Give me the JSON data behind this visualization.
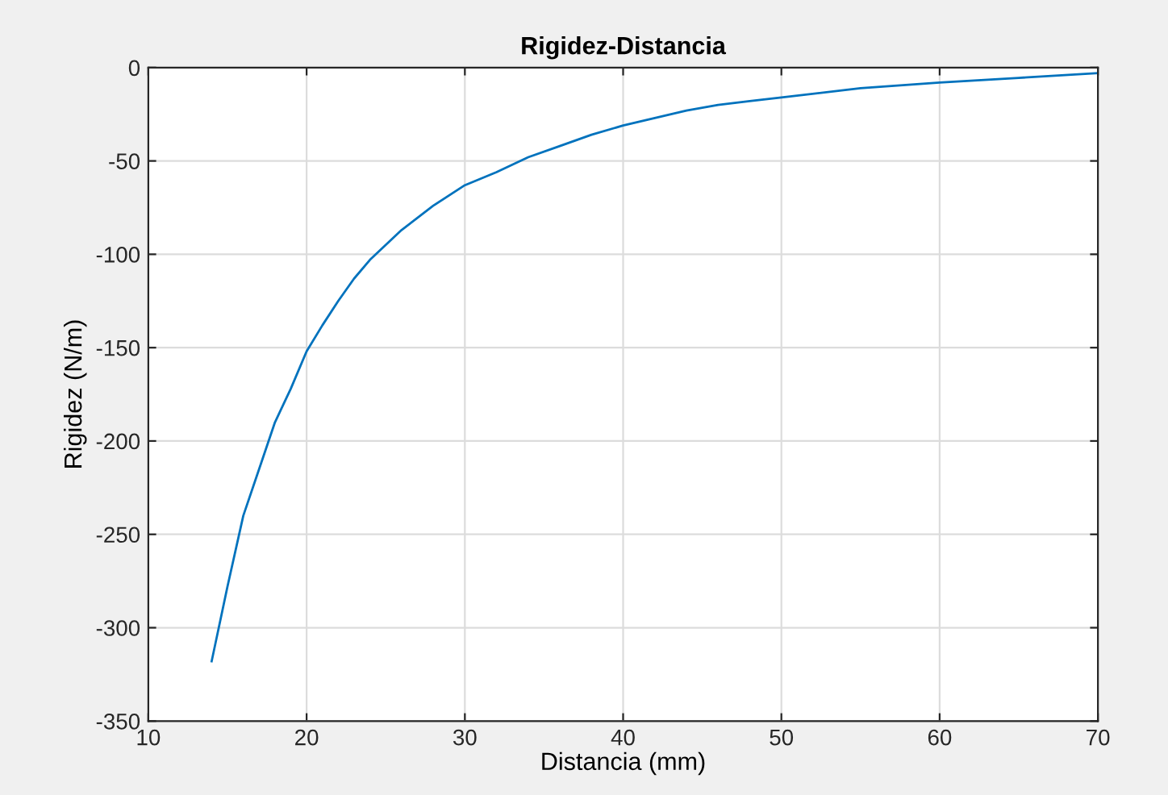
{
  "chart_data": {
    "type": "line",
    "title": "Rigidez-Distancia",
    "xlabel": "Distancia (mm)",
    "ylabel": "Rigidez (N/m)",
    "series": [
      {
        "color": "#0072bd",
        "x": [
          14,
          15,
          16,
          17,
          18,
          19,
          20,
          21,
          22,
          23,
          24,
          26,
          28,
          30,
          32,
          34,
          36,
          38,
          40,
          42,
          44,
          46,
          48,
          50,
          55,
          60,
          65,
          70
        ],
        "values": [
          -318,
          -278,
          -240,
          -215,
          -190,
          -172,
          -152,
          -138,
          -125,
          -113,
          -103,
          -87,
          -74,
          -63,
          -56,
          -48,
          -42,
          -36,
          -31,
          -27,
          -23,
          -20,
          -18,
          -16,
          -11,
          -8,
          -5.5,
          -3
        ]
      }
    ],
    "xlim": [
      10,
      70
    ],
    "ylim": [
      -350,
      0
    ],
    "xticks": [
      10,
      20,
      30,
      40,
      50,
      60,
      70
    ],
    "yticks": [
      -350,
      -300,
      -250,
      -200,
      -150,
      -100,
      -50,
      0
    ],
    "grid": true,
    "line_style": "solid",
    "marker": "none"
  }
}
